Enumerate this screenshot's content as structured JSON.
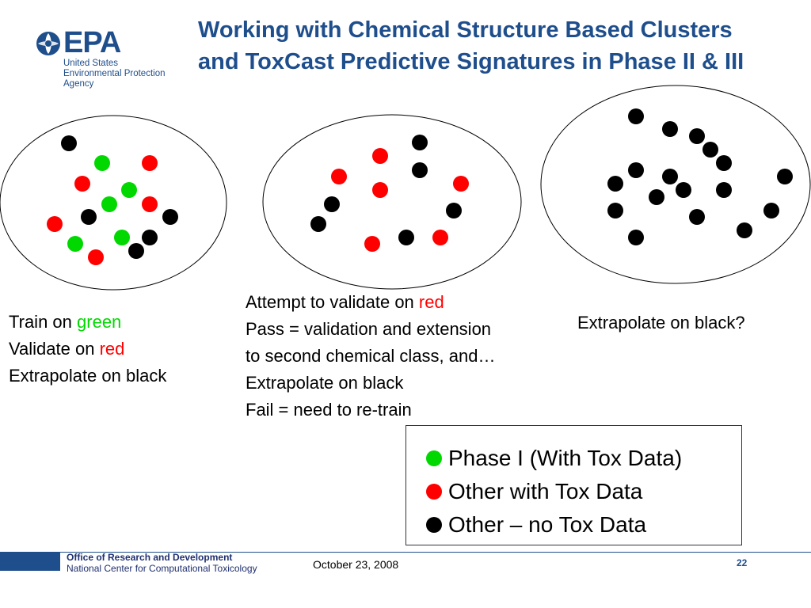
{
  "logo": {
    "name": "EPA",
    "lines": [
      "United States",
      "Environmental Protection",
      "Agency"
    ]
  },
  "title": "Working with Chemical Structure Based Clusters and ToxCast Predictive Signatures in Phase II & III",
  "colors": {
    "green": "#00d800",
    "red": "#ff0000",
    "black": "#000000",
    "brand": "#1f4e8c"
  },
  "clusters": [
    {
      "name": "cluster-1",
      "caption": [
        [
          {
            "text": "Train on "
          },
          {
            "text": "green",
            "color": "green"
          }
        ],
        [
          {
            "text": "Validate on "
          },
          {
            "text": "red",
            "color": "red"
          }
        ],
        [
          {
            "text": "Extrapolate on black"
          }
        ]
      ]
    },
    {
      "name": "cluster-2",
      "caption": [
        [
          {
            "text": "Attempt to validate on "
          },
          {
            "text": "red",
            "color": "red"
          }
        ],
        [
          {
            "text": "Pass = validation and extension"
          }
        ],
        [
          {
            "text": "to second chemical class, and…"
          }
        ],
        [
          {
            "text": "Extrapolate on black"
          }
        ],
        [
          {
            "text": "Fail = need to re-train"
          }
        ]
      ]
    },
    {
      "name": "cluster-3",
      "caption": [
        [
          {
            "text": "Extrapolate on black?"
          }
        ]
      ]
    }
  ],
  "legend": [
    {
      "label": "Phase I (With Tox Data)",
      "color": "green"
    },
    {
      "label": "Other with Tox Data",
      "color": "red"
    },
    {
      "label": "Other – no Tox Data",
      "color": "black"
    }
  ],
  "footer": {
    "office": "Office of Research and Development",
    "center": "National Center for Computational Toxicology",
    "date": "October 23, 2008",
    "page": "22"
  }
}
